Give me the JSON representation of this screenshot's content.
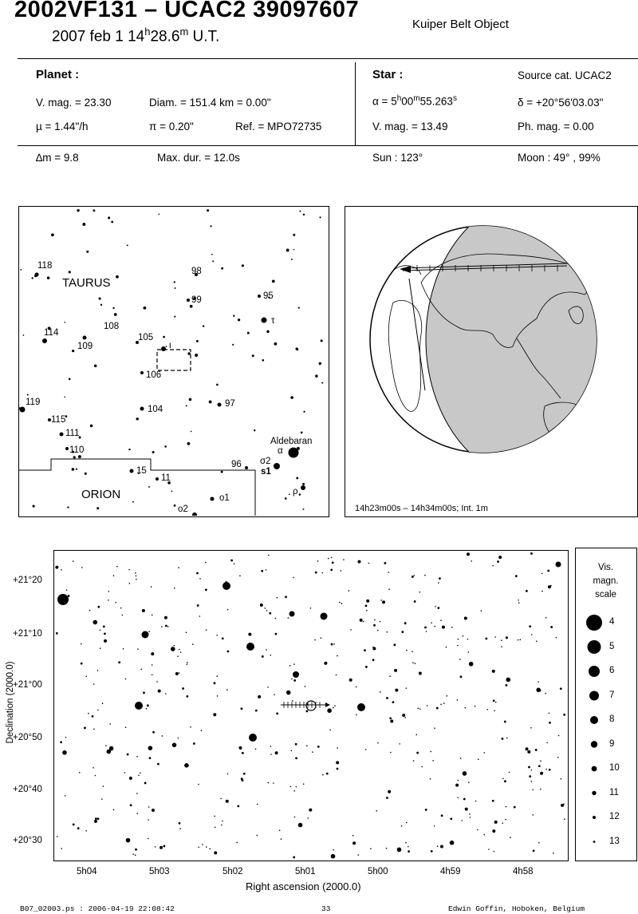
{
  "header": {
    "title": "2002VF131  –  UCAC2 39097607",
    "object_type": "Kuiper Belt Object",
    "date_text": "2007 feb  1  14",
    "hour_sup": "h",
    "minute_text": "28.6",
    "minute_sup": "m",
    "ut": " U.T."
  },
  "planet": {
    "heading": "Planet :",
    "vmag": "V. mag. = 23.30",
    "diam": "Diam. = 151.4 km = 0.00\"",
    "mu": "µ =  1.44\"/h",
    "pi": "π =  0.20\"",
    "ref": "Ref. = MPO72735"
  },
  "star": {
    "heading": "Star :",
    "source": "Source cat.  UCAC2",
    "ra_prefix": "α =  5",
    "ra_h": "h",
    "ra_mid": "00",
    "ra_m": "m",
    "ra_val": "55.263",
    "ra_s": "s",
    "dec": "δ = +20°56'03.03\"",
    "vmag": "V. mag. = 13.49",
    "phmag": "Ph. mag. =  0.00"
  },
  "summary": {
    "dm": "∆m = 9.8",
    "maxdur": "Max. dur. = 12.0s",
    "sun": "Sun : 123°",
    "moon": "Moon :  49° , 99%"
  },
  "finder": {
    "constellations": [
      "TAURUS",
      "ORION"
    ],
    "star_labels": [
      "118",
      "98",
      "99",
      "95",
      "τ",
      "114",
      "108",
      "109",
      "105",
      "ι",
      "106",
      "119",
      "97",
      "104",
      "115",
      "111",
      "110",
      "Aldebaran",
      "α",
      "σ2",
      "s1",
      "96",
      "15",
      "11",
      "ρ",
      "o1",
      "o2"
    ]
  },
  "globe": {
    "caption": "14h23m00s – 14h34m00s; Int.  1m"
  },
  "chart": {
    "y_ticks": [
      "+21°20",
      "+21°10",
      "+21°00",
      "+20°50",
      "+20°40",
      "+20°30"
    ],
    "x_ticks": [
      "5h04",
      "5h03",
      "5h02",
      "5h01",
      "5h00",
      "4h59",
      "4h58"
    ],
    "xlabel": "Right ascension (2000.0)",
    "ylabel": "Declination (2000.0)"
  },
  "scale": {
    "title1": "Vis.",
    "title2": "magn.",
    "title3": "scale",
    "mags": [
      "4",
      "5",
      "6",
      "7",
      "8",
      "9",
      "10",
      "11",
      "12",
      "13"
    ]
  },
  "footer": {
    "left": "B07_02003.ps : 2006-04-19 22:08:42",
    "page": "33",
    "right": "Edwin Goffin, Hoboken, Belgium"
  }
}
